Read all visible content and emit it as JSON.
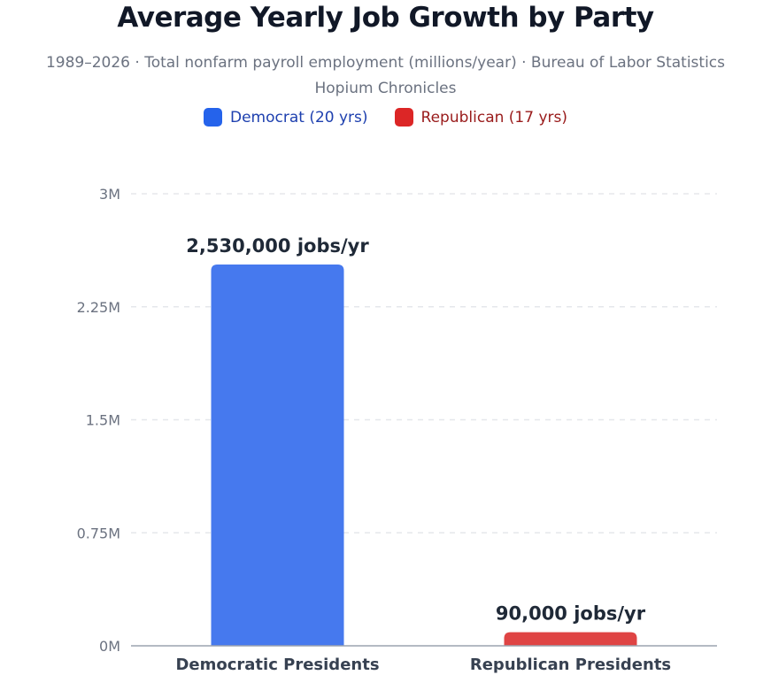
{
  "chart_data": {
    "type": "bar",
    "title": "Average Yearly Job Growth by Party",
    "subtitle": "1989–2026 · Total nonfarm payroll employment (millions/year) · Bureau of Labor Statistics",
    "source_line": "Hopium Chronicles",
    "categories": [
      "Democratic Presidents",
      "Republican Presidents"
    ],
    "series": [
      {
        "name": "Average jobs per year",
        "values": [
          2530000,
          90000
        ]
      }
    ],
    "data_labels": [
      "2,530,000 jobs/yr",
      "90,000 jobs/yr"
    ],
    "bar_colors": [
      "#4679ee",
      "#df4444"
    ],
    "legend": [
      {
        "label": "Democrat (20 yrs)",
        "color": "#2563eb",
        "text_color": "#1e40af"
      },
      {
        "label": "Republican (17 yrs)",
        "color": "#dc2626",
        "text_color": "#991b1b"
      }
    ],
    "legend_position": "top",
    "ylim": [
      0,
      3000000
    ],
    "yticks": [
      0,
      750000,
      1500000,
      2250000,
      3000000
    ],
    "ytick_labels": [
      "0M",
      "0.75M",
      "1.5M",
      "2.25M",
      "3M"
    ],
    "grid": true,
    "xlabel": "",
    "ylabel": ""
  }
}
